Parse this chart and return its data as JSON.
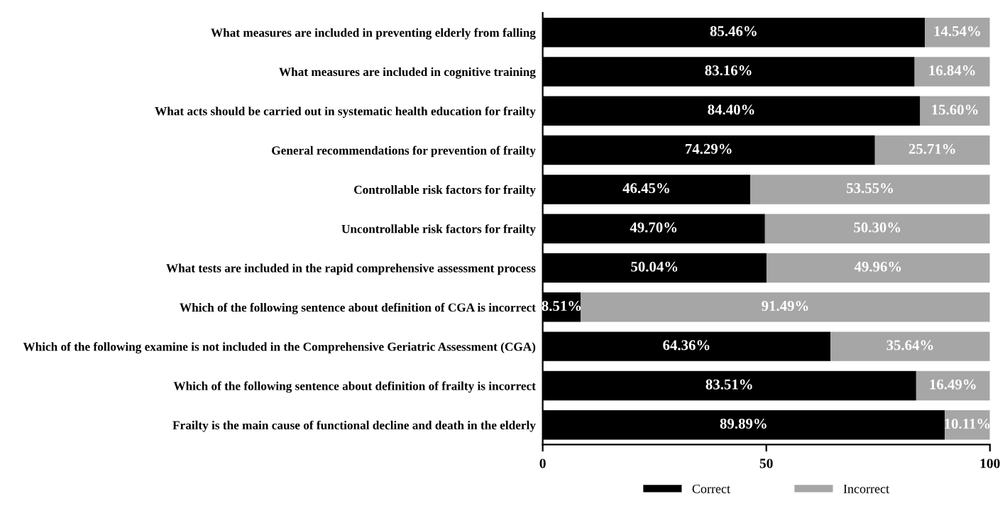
{
  "chart_data": {
    "type": "bar",
    "orientation": "horizontal",
    "stacked": true,
    "categories": [
      "What measures are included in preventing elderly from falling",
      "What measures are included in cognitive training",
      "What acts should be carried out in systematic health education for frailty",
      "General recommendations for prevention of frailty",
      "Controllable risk factors for frailty",
      "Uncontrollable risk factors for frailty",
      "What tests are included in the rapid comprehensive assessment process",
      "Which of the following sentence about definition of CGA is incorrect",
      "Which of the following examine is not included in the Comprehensive Geriatric Assessment (CGA)",
      "Which of the following sentence about definition of frailty is incorrect",
      "Frailty is the main cause of functional decline and death in the elderly"
    ],
    "series": [
      {
        "name": "Correct",
        "color": "#000000",
        "values": [
          85.46,
          83.16,
          84.4,
          74.29,
          46.45,
          49.7,
          50.04,
          8.51,
          64.36,
          83.51,
          89.89
        ],
        "value_labels": [
          "85.46%",
          "83.16%",
          "84.40%",
          "74.29%",
          "46.45%",
          "49.70%",
          "50.04%",
          "8.51%",
          "64.36%",
          "83.51%",
          "89.89%"
        ]
      },
      {
        "name": "Incorrect",
        "color": "#a6a6a6",
        "values": [
          14.54,
          16.84,
          15.6,
          25.71,
          53.55,
          50.3,
          49.96,
          91.49,
          35.64,
          16.49,
          10.11
        ],
        "value_labels": [
          "14.54%",
          "16.84%",
          "15.60%",
          "25.71%",
          "53.55%",
          "50.30%",
          "49.96%",
          "91.49%",
          "35.64%",
          "16.49%",
          "10.11%"
        ]
      }
    ],
    "xlim": [
      0,
      100
    ],
    "xticks": [
      0,
      50,
      100
    ],
    "grid": false,
    "legend": "bottom"
  }
}
